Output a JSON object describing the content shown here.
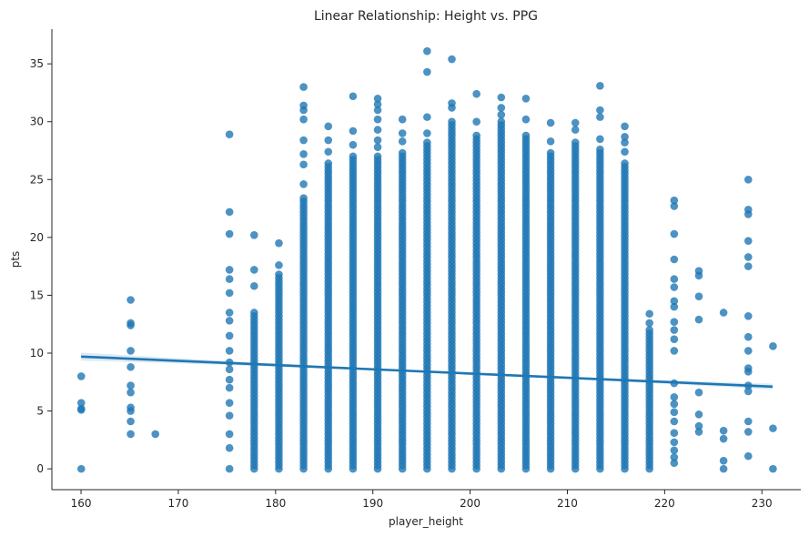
{
  "chart_data": {
    "type": "scatter",
    "title": "Linear Relationship: Height vs. PPG",
    "xlabel": "player_height",
    "ylabel": "pts",
    "xlim": [
      157,
      234
    ],
    "ylim": [
      -1.8,
      38
    ],
    "xticks": [
      160,
      170,
      180,
      190,
      200,
      210,
      220,
      230
    ],
    "yticks": [
      0,
      5,
      10,
      15,
      20,
      25,
      30,
      35
    ],
    "grid": false,
    "legend": "none",
    "point_color": "#1f77b4",
    "columns": [
      {
        "x": 160.02,
        "min": 0,
        "max": 8.0,
        "extra": [
          0,
          5.1,
          5.2,
          5.7,
          8.0
        ]
      },
      {
        "x": 165.1,
        "min": 3.0,
        "max": 14.6,
        "extra": [
          3.0,
          4.1,
          5.0,
          5.3,
          6.6,
          7.2,
          8.8,
          10.2,
          12.4,
          12.6,
          14.6
        ]
      },
      {
        "x": 167.64,
        "min": 3.0,
        "max": 3.0,
        "extra": [
          3.0
        ]
      },
      {
        "x": 175.26,
        "min": 0,
        "max": 28.9,
        "extra": [
          0,
          1.8,
          3.0,
          4.6,
          5.7,
          7.0,
          7.7,
          8.6,
          9.2,
          10.2,
          11.5,
          12.8,
          13.5,
          15.2,
          16.4,
          17.2,
          20.3,
          22.2,
          28.9
        ]
      },
      {
        "x": 177.8,
        "min": 0,
        "max": 20.2,
        "dense_max": 13.5,
        "extra": [
          15.8,
          17.2,
          20.2
        ]
      },
      {
        "x": 180.34,
        "min": 0,
        "max": 19.5,
        "dense_max": 17.0,
        "extra": [
          17.6,
          19.5
        ]
      },
      {
        "x": 182.88,
        "min": 0,
        "max": 33.0,
        "dense_max": 23.5,
        "extra": [
          24.6,
          26.3,
          27.2,
          28.4,
          30.2,
          31.0,
          31.4,
          33.0
        ]
      },
      {
        "x": 185.42,
        "min": 0,
        "max": 29.6,
        "dense_max": 26.5,
        "extra": [
          27.4,
          28.4,
          29.6
        ]
      },
      {
        "x": 187.96,
        "min": 0,
        "max": 32.2,
        "dense_max": 27.0,
        "extra": [
          28.0,
          29.2,
          32.2
        ]
      },
      {
        "x": 190.5,
        "min": 0,
        "max": 32.0,
        "dense_max": 27.0,
        "extra": [
          27.8,
          28.4,
          29.3,
          30.2,
          31.0,
          31.5,
          32.0
        ]
      },
      {
        "x": 193.04,
        "min": 0,
        "max": 30.2,
        "dense_max": 27.5,
        "extra": [
          28.3,
          29.0,
          30.2
        ]
      },
      {
        "x": 195.58,
        "min": 0,
        "max": 36.1,
        "dense_max": 28.2,
        "extra": [
          29.0,
          30.4,
          34.3,
          36.1
        ]
      },
      {
        "x": 198.12,
        "min": 0,
        "max": 35.4,
        "dense_max": 30.2,
        "extra": [
          31.2,
          31.6,
          35.4
        ]
      },
      {
        "x": 200.66,
        "min": 0,
        "max": 32.4,
        "dense_max": 29.0,
        "extra": [
          30.0,
          32.4
        ]
      },
      {
        "x": 203.2,
        "min": 0,
        "max": 32.1,
        "dense_max": 30.0,
        "extra": [
          30.6,
          31.2,
          32.1
        ]
      },
      {
        "x": 205.74,
        "min": 0,
        "max": 32.0,
        "dense_max": 29.0,
        "extra": [
          30.2,
          32.0
        ]
      },
      {
        "x": 208.28,
        "min": 0,
        "max": 29.9,
        "dense_max": 27.5,
        "extra": [
          28.3,
          29.9
        ]
      },
      {
        "x": 210.82,
        "min": 0,
        "max": 29.9,
        "dense_max": 28.2,
        "extra": [
          29.3,
          29.9
        ]
      },
      {
        "x": 213.36,
        "min": 0,
        "max": 33.1,
        "dense_max": 27.8,
        "extra": [
          28.5,
          30.4,
          31.0,
          33.1
        ]
      },
      {
        "x": 215.9,
        "min": 0,
        "max": 29.6,
        "dense_max": 26.5,
        "extra": [
          27.4,
          28.2,
          28.7,
          29.6
        ]
      },
      {
        "x": 218.44,
        "min": 0,
        "max": 13.4,
        "dense_max": 12.0,
        "extra": [
          12.6,
          13.4
        ]
      },
      {
        "x": 220.98,
        "min": 0.5,
        "max": 23.2,
        "extra": [
          0.5,
          1.0,
          1.6,
          2.3,
          3.1,
          4.1,
          4.9,
          5.6,
          6.2,
          7.4,
          10.2,
          11.2,
          12.0,
          12.7,
          14.0,
          14.5,
          15.7,
          16.4,
          18.1,
          20.3,
          22.7,
          23.2
        ]
      },
      {
        "x": 223.52,
        "min": 3.2,
        "max": 17.1,
        "extra": [
          3.2,
          3.7,
          4.7,
          6.6,
          12.9,
          14.9,
          16.7,
          17.1
        ]
      },
      {
        "x": 226.06,
        "min": 0,
        "max": 13.5,
        "extra": [
          0,
          0.7,
          2.6,
          3.3,
          13.5
        ]
      },
      {
        "x": 228.6,
        "min": 1.1,
        "max": 25.0,
        "extra": [
          1.1,
          3.2,
          4.1,
          6.7,
          7.2,
          8.4,
          8.7,
          10.2,
          11.4,
          13.2,
          17.5,
          18.3,
          19.7,
          22.0,
          22.4,
          25.0
        ]
      },
      {
        "x": 231.14,
        "min": 0,
        "max": 10.6,
        "extra": [
          0,
          3.5,
          10.6
        ]
      }
    ],
    "regression": {
      "x": [
        160,
        231.1
      ],
      "y": [
        9.7,
        7.1
      ],
      "ci_halfwidth_ends": [
        0.35,
        0.35
      ],
      "ci_halfwidth_center": 0.08
    }
  }
}
